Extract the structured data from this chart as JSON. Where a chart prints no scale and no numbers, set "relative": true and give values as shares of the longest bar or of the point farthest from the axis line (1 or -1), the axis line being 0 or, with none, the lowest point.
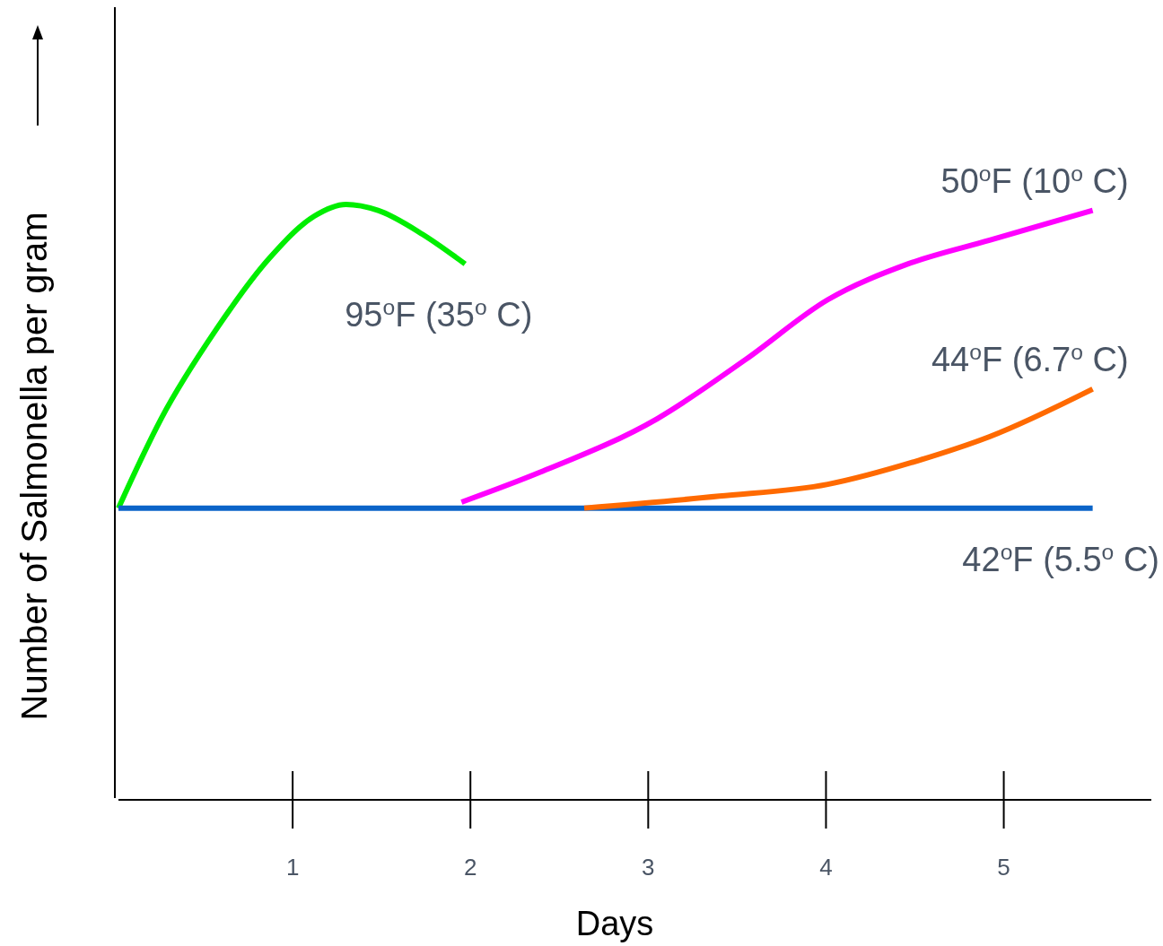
{
  "chart_data": {
    "type": "line",
    "relative": true,
    "xlabel": "Days",
    "ylabel": "Number of Salmonella per gram",
    "xlim": [
      0,
      5.83
    ],
    "xticks": [
      1,
      2,
      3,
      4,
      5
    ],
    "line_style": "solid",
    "marker": "none",
    "series": [
      {
        "name": "95$^{o}$F (35$^{o}$ C)",
        "color": "#00ee00",
        "x": [
          0.02,
          0.26,
          0.57,
          0.87,
          1.12,
          1.3,
          1.48,
          1.73,
          1.97
        ],
        "values": [
          0.49,
          0.64,
          0.79,
          0.91,
          0.98,
          1.0,
          0.99,
          0.95,
          0.9
        ]
      },
      {
        "name": "42$^{o}$F (5.5$^{o}$ C)",
        "color": "#0b64c8",
        "x": [
          0.02,
          5.5
        ],
        "values": [
          0.49,
          0.49
        ]
      },
      {
        "name": "50$^{o}$F (10$^{o}$ C)",
        "color": "#ff00ff",
        "x": [
          1.95,
          2.39,
          3.05,
          3.55,
          4.01,
          4.46,
          4.92,
          5.5
        ],
        "values": [
          0.5,
          0.55,
          0.64,
          0.74,
          0.84,
          0.9,
          0.94,
          0.99
        ]
      },
      {
        "name": "44$^{o}$F (6.7$^{o}$ C)",
        "color": "#ff6a00",
        "x": [
          2.64,
          3.4,
          4.01,
          4.52,
          4.92,
          5.5
        ],
        "values": [
          0.49,
          0.51,
          0.53,
          0.57,
          0.61,
          0.69
        ]
      }
    ]
  }
}
